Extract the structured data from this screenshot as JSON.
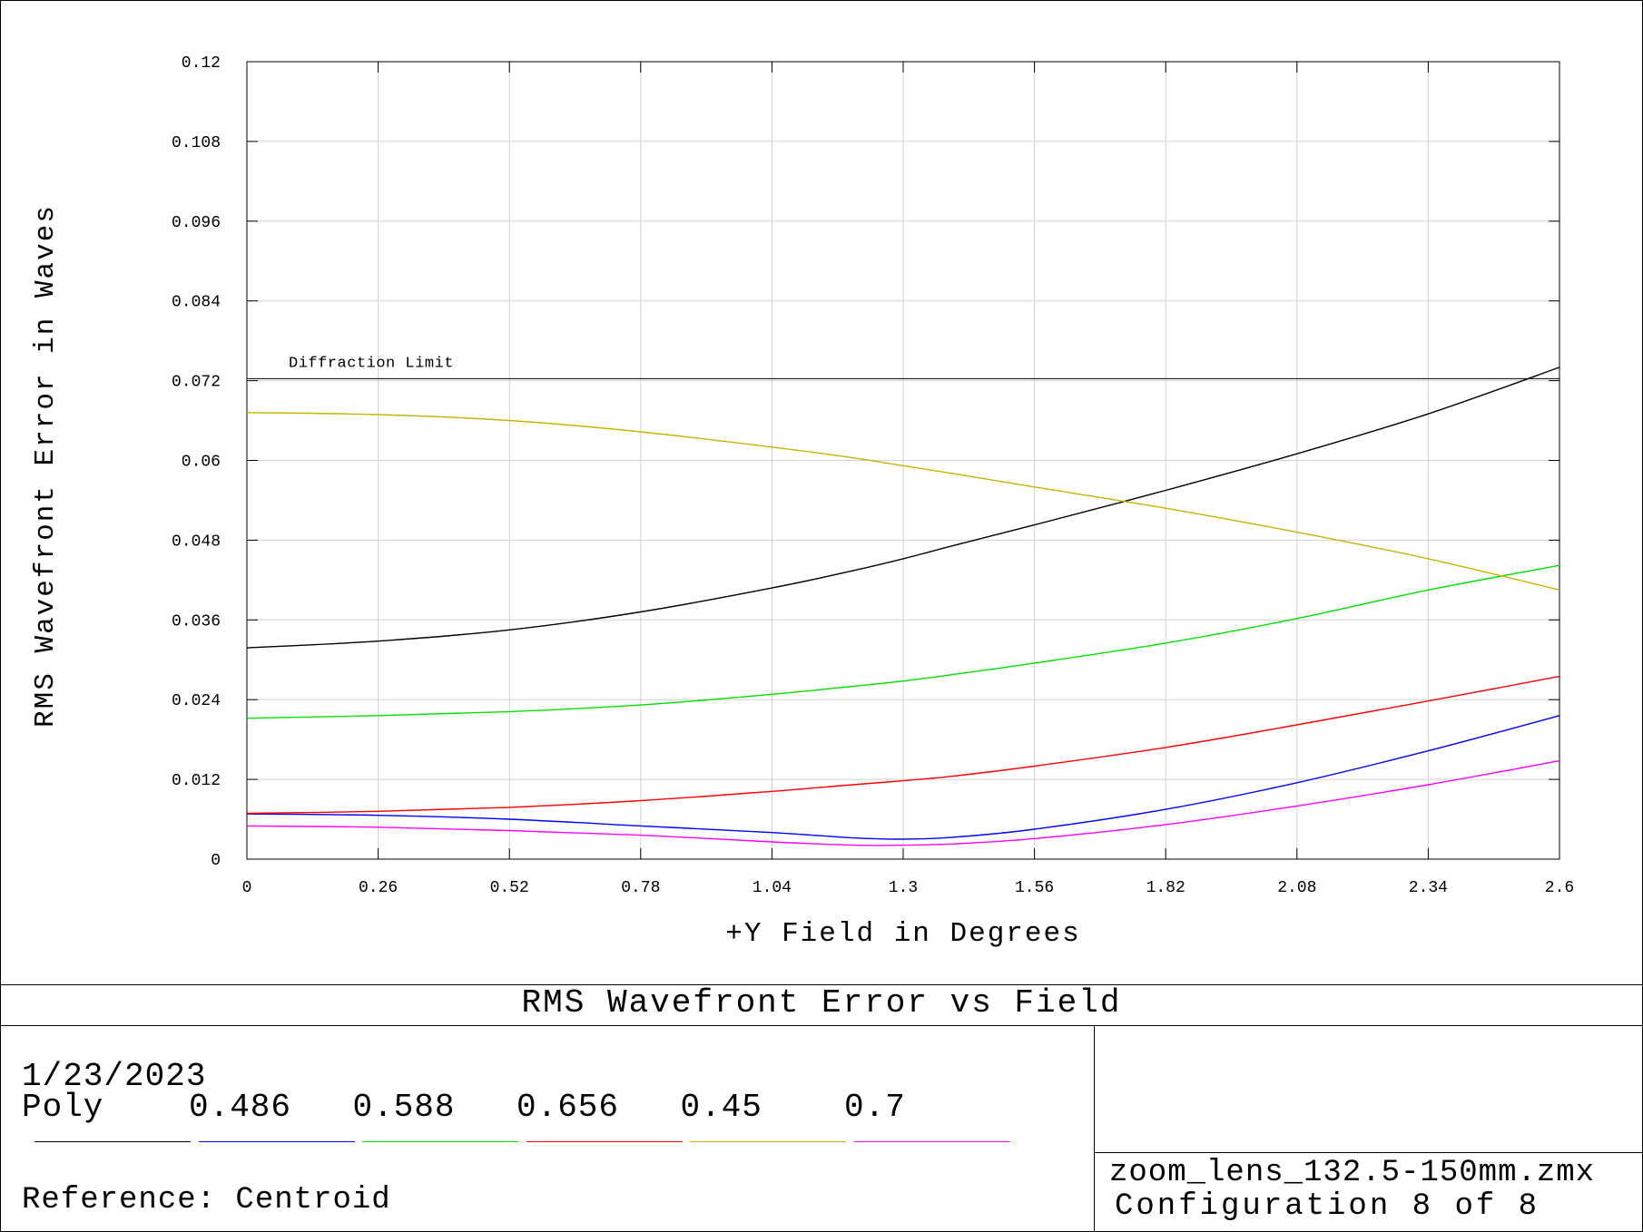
{
  "chart_data": {
    "type": "line",
    "title": "RMS Wavefront Error vs Field",
    "xlabel": "+Y Field in Degrees",
    "ylabel": "RMS Wavefront Error in Waves",
    "xlim": [
      0,
      2.6
    ],
    "ylim": [
      0,
      0.12
    ],
    "xticks": [
      "0",
      "0.26",
      "0.52",
      "0.78",
      "1.04",
      "1.3",
      "1.56",
      "1.82",
      "2.08",
      "2.34",
      "2.6"
    ],
    "yticks": [
      "0",
      "0.012",
      "0.024",
      "0.036",
      "0.048",
      "0.06",
      "0.072",
      "0.084",
      "0.096",
      "0.108",
      "0.12"
    ],
    "grid": true,
    "annotation": {
      "label": "Diffraction Limit",
      "y": 0.0723
    },
    "x": [
      0,
      0.26,
      0.52,
      0.78,
      1.04,
      1.2,
      1.3,
      1.4,
      1.56,
      1.82,
      2.08,
      2.34,
      2.6
    ],
    "series": [
      {
        "name": "Poly",
        "color": "#000000",
        "values": [
          0.0318,
          0.0328,
          0.0345,
          0.0372,
          0.0408,
          0.0434,
          0.0452,
          0.0472,
          0.0503,
          0.0555,
          0.061,
          0.067,
          0.074
        ]
      },
      {
        "name": "0.486",
        "color": "#0000ff",
        "values": [
          0.0068,
          0.0066,
          0.006,
          0.005,
          0.004,
          0.0032,
          0.003,
          0.0033,
          0.0045,
          0.0075,
          0.0115,
          0.0163,
          0.0216
        ]
      },
      {
        "name": "0.588",
        "color": "#00e000",
        "values": [
          0.0212,
          0.0216,
          0.0222,
          0.0232,
          0.0248,
          0.026,
          0.0268,
          0.0278,
          0.0295,
          0.0325,
          0.0362,
          0.0405,
          0.0442
        ]
      },
      {
        "name": "0.656",
        "color": "#ff0000",
        "values": [
          0.0069,
          0.0072,
          0.0078,
          0.0088,
          0.0102,
          0.0112,
          0.0118,
          0.0125,
          0.014,
          0.0168,
          0.0202,
          0.0238,
          0.0275
        ]
      },
      {
        "name": "0.45",
        "color": "#c8b400",
        "values": [
          0.0672,
          0.0669,
          0.066,
          0.0643,
          0.062,
          0.0604,
          0.0592,
          0.058,
          0.056,
          0.0528,
          0.0492,
          0.0452,
          0.0405
        ]
      },
      {
        "name": "0.7",
        "color": "#ff00ff",
        "values": [
          0.005,
          0.0048,
          0.0043,
          0.0036,
          0.0026,
          0.0021,
          0.0021,
          0.0023,
          0.0031,
          0.0052,
          0.008,
          0.0112,
          0.0148
        ]
      }
    ]
  },
  "footer": {
    "date": "1/23/2023",
    "reference": "Reference: Centroid",
    "filename": "zoom_lens_132.5-150mm.zmx",
    "configuration": "Configuration 8 of 8"
  }
}
